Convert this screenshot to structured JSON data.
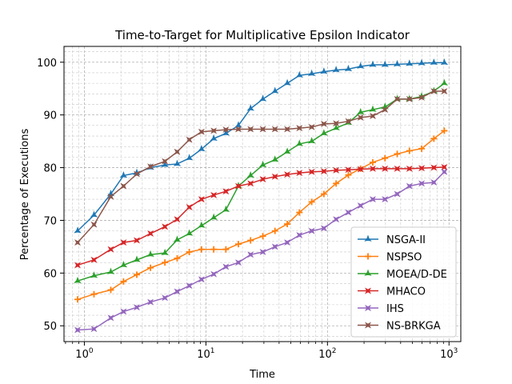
{
  "chart_data": {
    "type": "line",
    "title": "Time-to-Target for Multiplicative Epsilon Indicator",
    "xlabel": "Time",
    "ylabel": "Percentage of Executions",
    "xscale": "log",
    "xlim": [
      0.68,
      1250
    ],
    "ylim": [
      47,
      103
    ],
    "x_ticks": [
      {
        "value": 1,
        "base": "10",
        "exp": "0"
      },
      {
        "value": 10,
        "base": "10",
        "exp": "1"
      },
      {
        "value": 100,
        "base": "10",
        "exp": "2"
      },
      {
        "value": 1000,
        "base": "10",
        "exp": "3"
      }
    ],
    "y_ticks": [
      50,
      60,
      70,
      80,
      90,
      100
    ],
    "grid": "major and minor, dashed",
    "legend_position": "lower-right",
    "series": [
      {
        "name": "NSGA-II",
        "color": "#1f77b4",
        "marker": "star-3",
        "x": [
          0.88,
          1.2,
          1.65,
          2.1,
          2.7,
          3.5,
          4.6,
          5.8,
          7.3,
          9.2,
          11.6,
          14.6,
          18.5,
          23.3,
          29.4,
          37.0,
          46.7,
          58.8,
          74.2,
          93.5,
          117.8,
          148.5,
          187.2,
          235.9,
          297.3,
          374.8,
          472.5,
          595.6,
          750.7,
          914.6
        ],
        "y": [
          68.0,
          71.0,
          75.0,
          78.5,
          79.0,
          80.0,
          80.5,
          80.7,
          81.8,
          83.5,
          85.5,
          86.5,
          88.0,
          91.2,
          93.0,
          94.5,
          96.0,
          97.5,
          97.8,
          98.2,
          98.5,
          98.7,
          99.2,
          99.5,
          99.5,
          99.6,
          99.7,
          99.8,
          99.9,
          99.9
        ]
      },
      {
        "name": "NSPSO",
        "color": "#ff7f0e",
        "marker": "plus",
        "x": [
          0.88,
          1.2,
          1.65,
          2.1,
          2.7,
          3.5,
          4.6,
          5.8,
          7.3,
          9.2,
          11.6,
          14.6,
          18.5,
          23.3,
          29.4,
          37.0,
          46.7,
          58.8,
          74.2,
          93.5,
          117.8,
          148.5,
          187.2,
          235.9,
          297.3,
          374.8,
          472.5,
          595.6,
          750.7,
          914.6
        ],
        "y": [
          55.0,
          56.0,
          56.8,
          58.4,
          59.7,
          61.0,
          62.0,
          62.8,
          64.0,
          64.5,
          64.5,
          64.5,
          65.5,
          66.2,
          67.0,
          68.0,
          69.3,
          71.5,
          73.5,
          75.0,
          77.0,
          78.6,
          79.8,
          81.0,
          81.8,
          82.6,
          83.2,
          83.6,
          85.5,
          87.0
        ]
      },
      {
        "name": "MOEA/D-DE",
        "color": "#2ca02c",
        "marker": "star-3",
        "x": [
          0.88,
          1.2,
          1.65,
          2.1,
          2.7,
          3.5,
          4.6,
          5.8,
          7.3,
          9.2,
          11.6,
          14.6,
          18.5,
          23.3,
          29.4,
          37.0,
          46.7,
          58.8,
          74.2,
          93.5,
          117.8,
          148.5,
          187.2,
          235.9,
          297.3,
          374.8,
          472.5,
          595.6,
          750.7,
          914.6
        ],
        "y": [
          58.5,
          59.5,
          60.2,
          61.5,
          62.5,
          63.5,
          63.8,
          66.3,
          67.5,
          69.0,
          70.5,
          72.0,
          76.5,
          78.5,
          80.5,
          81.5,
          83.0,
          84.5,
          85.0,
          86.5,
          87.5,
          88.5,
          90.5,
          91.0,
          91.5,
          93.0,
          93.0,
          93.5,
          94.5,
          96.0
        ]
      },
      {
        "name": "MHACO",
        "color": "#d62728",
        "marker": "star-4",
        "x": [
          0.88,
          1.2,
          1.65,
          2.1,
          2.7,
          3.5,
          4.6,
          5.8,
          7.3,
          9.2,
          11.6,
          14.6,
          18.5,
          23.3,
          29.4,
          37.0,
          46.7,
          58.8,
          74.2,
          93.5,
          117.8,
          148.5,
          187.2,
          235.9,
          297.3,
          374.8,
          472.5,
          595.6,
          750.7,
          914.6
        ],
        "y": [
          61.5,
          62.5,
          64.5,
          65.8,
          66.2,
          67.5,
          68.8,
          70.2,
          72.5,
          74.0,
          74.8,
          75.5,
          76.5,
          77.0,
          77.8,
          78.3,
          78.7,
          79.0,
          79.2,
          79.3,
          79.5,
          79.6,
          79.7,
          79.8,
          79.8,
          79.8,
          79.8,
          79.9,
          80.0,
          80.1
        ]
      },
      {
        "name": "IHS",
        "color": "#9467bd",
        "marker": "star-4",
        "x": [
          0.88,
          1.2,
          1.65,
          2.1,
          2.7,
          3.5,
          4.6,
          5.8,
          7.3,
          9.2,
          11.6,
          14.6,
          18.5,
          23.3,
          29.4,
          37.0,
          46.7,
          58.8,
          74.2,
          93.5,
          117.8,
          148.5,
          187.2,
          235.9,
          297.3,
          374.8,
          472.5,
          595.6,
          750.7,
          914.6
        ],
        "y": [
          49.2,
          49.4,
          51.5,
          52.7,
          53.5,
          54.5,
          55.3,
          56.5,
          57.6,
          58.8,
          59.8,
          61.2,
          62.0,
          63.5,
          64.0,
          65.0,
          65.8,
          67.2,
          68.0,
          68.5,
          70.2,
          71.5,
          72.8,
          74.0,
          74.0,
          75.0,
          76.5,
          77.0,
          77.2,
          79.2
        ]
      },
      {
        "name": "NS-BRKGA",
        "color": "#8c564b",
        "marker": "star-4",
        "x": [
          0.88,
          1.2,
          1.65,
          2.1,
          2.7,
          3.5,
          4.6,
          5.8,
          7.3,
          9.2,
          11.6,
          14.6,
          18.5,
          23.3,
          29.4,
          37.0,
          46.7,
          58.8,
          74.2,
          93.5,
          117.8,
          148.5,
          187.2,
          235.9,
          297.3,
          374.8,
          472.5,
          595.6,
          750.7,
          914.6
        ],
        "y": [
          65.8,
          69.2,
          74.5,
          76.5,
          78.8,
          80.2,
          81.2,
          83.0,
          85.3,
          86.8,
          87.0,
          87.2,
          87.3,
          87.3,
          87.3,
          87.3,
          87.3,
          87.5,
          87.7,
          88.3,
          88.4,
          88.8,
          89.5,
          89.8,
          91.0,
          93.0,
          93.0,
          93.3,
          94.5,
          94.5
        ]
      }
    ]
  }
}
